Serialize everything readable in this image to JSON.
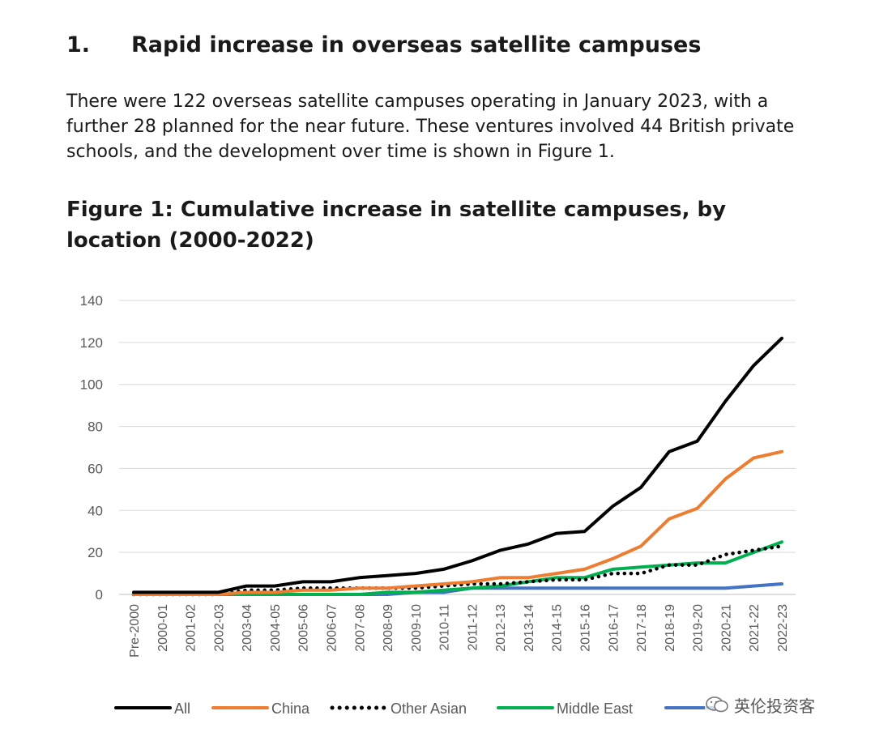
{
  "section": {
    "number": "1.",
    "title": "Rapid increase in overseas satellite campuses"
  },
  "paragraph": "There were 122 overseas satellite campuses operating in January 2023, with a further 28 planned for the near future. These ventures involved 44 British private schools, and the development over time is shown in Figure 1.",
  "figure_title": "Figure 1: Cumulative increase in satellite campuses, by location (2000-2022)",
  "watermark": {
    "text": "英伦投资客"
  },
  "chart_data": {
    "type": "line",
    "title": "",
    "xlabel": "",
    "ylabel": "",
    "ylim": [
      0,
      140
    ],
    "yticks": [
      0,
      20,
      40,
      60,
      80,
      100,
      120,
      140
    ],
    "grid": true,
    "legend_position": "bottom",
    "categories": [
      "Pre-2000",
      "2000-01",
      "2001-02",
      "2002-03",
      "2003-04",
      "2004-05",
      "2005-06",
      "2006-07",
      "2007-08",
      "2008-09",
      "2009-10",
      "2010-11",
      "2011-12",
      "2012-13",
      "2013-14",
      "2014-15",
      "2015-16",
      "2016-17",
      "2017-18",
      "2018-19",
      "2019-20",
      "2020-21",
      "2021-22",
      "2022-23"
    ],
    "series": [
      {
        "name": "All",
        "color": "#000000",
        "style": "solid",
        "values": [
          1,
          1,
          1,
          1,
          4,
          4,
          6,
          6,
          8,
          9,
          10,
          12,
          16,
          21,
          24,
          29,
          30,
          42,
          51,
          68,
          73,
          92,
          109,
          122
        ]
      },
      {
        "name": "China",
        "color": "#ed7d31",
        "style": "solid",
        "values": [
          0,
          0,
          0,
          0,
          1,
          1,
          2,
          2,
          3,
          3,
          4,
          5,
          6,
          8,
          8,
          10,
          12,
          17,
          23,
          36,
          41,
          55,
          65,
          68
        ]
      },
      {
        "name": "Other Asian",
        "color": "#000000",
        "style": "dotted",
        "values": [
          0,
          0,
          0,
          0,
          2,
          2,
          3,
          3,
          3,
          3,
          3,
          4,
          5,
          5,
          6,
          7,
          7,
          10,
          10,
          14,
          14,
          19,
          21,
          23
        ]
      },
      {
        "name": "Middle East",
        "color": "#00b050",
        "style": "solid",
        "values": [
          0,
          0,
          0,
          0,
          0,
          0,
          0,
          0,
          0,
          1,
          1,
          2,
          3,
          4,
          6,
          8,
          8,
          12,
          13,
          14,
          15,
          15,
          20,
          25
        ]
      },
      {
        "name": "",
        "color": "#4472c4",
        "style": "solid",
        "values": [
          0,
          0,
          0,
          0,
          0,
          0,
          0,
          0,
          0,
          0,
          1,
          1,
          3,
          3,
          3,
          3,
          3,
          3,
          3,
          3,
          3,
          3,
          4,
          5
        ]
      }
    ]
  }
}
